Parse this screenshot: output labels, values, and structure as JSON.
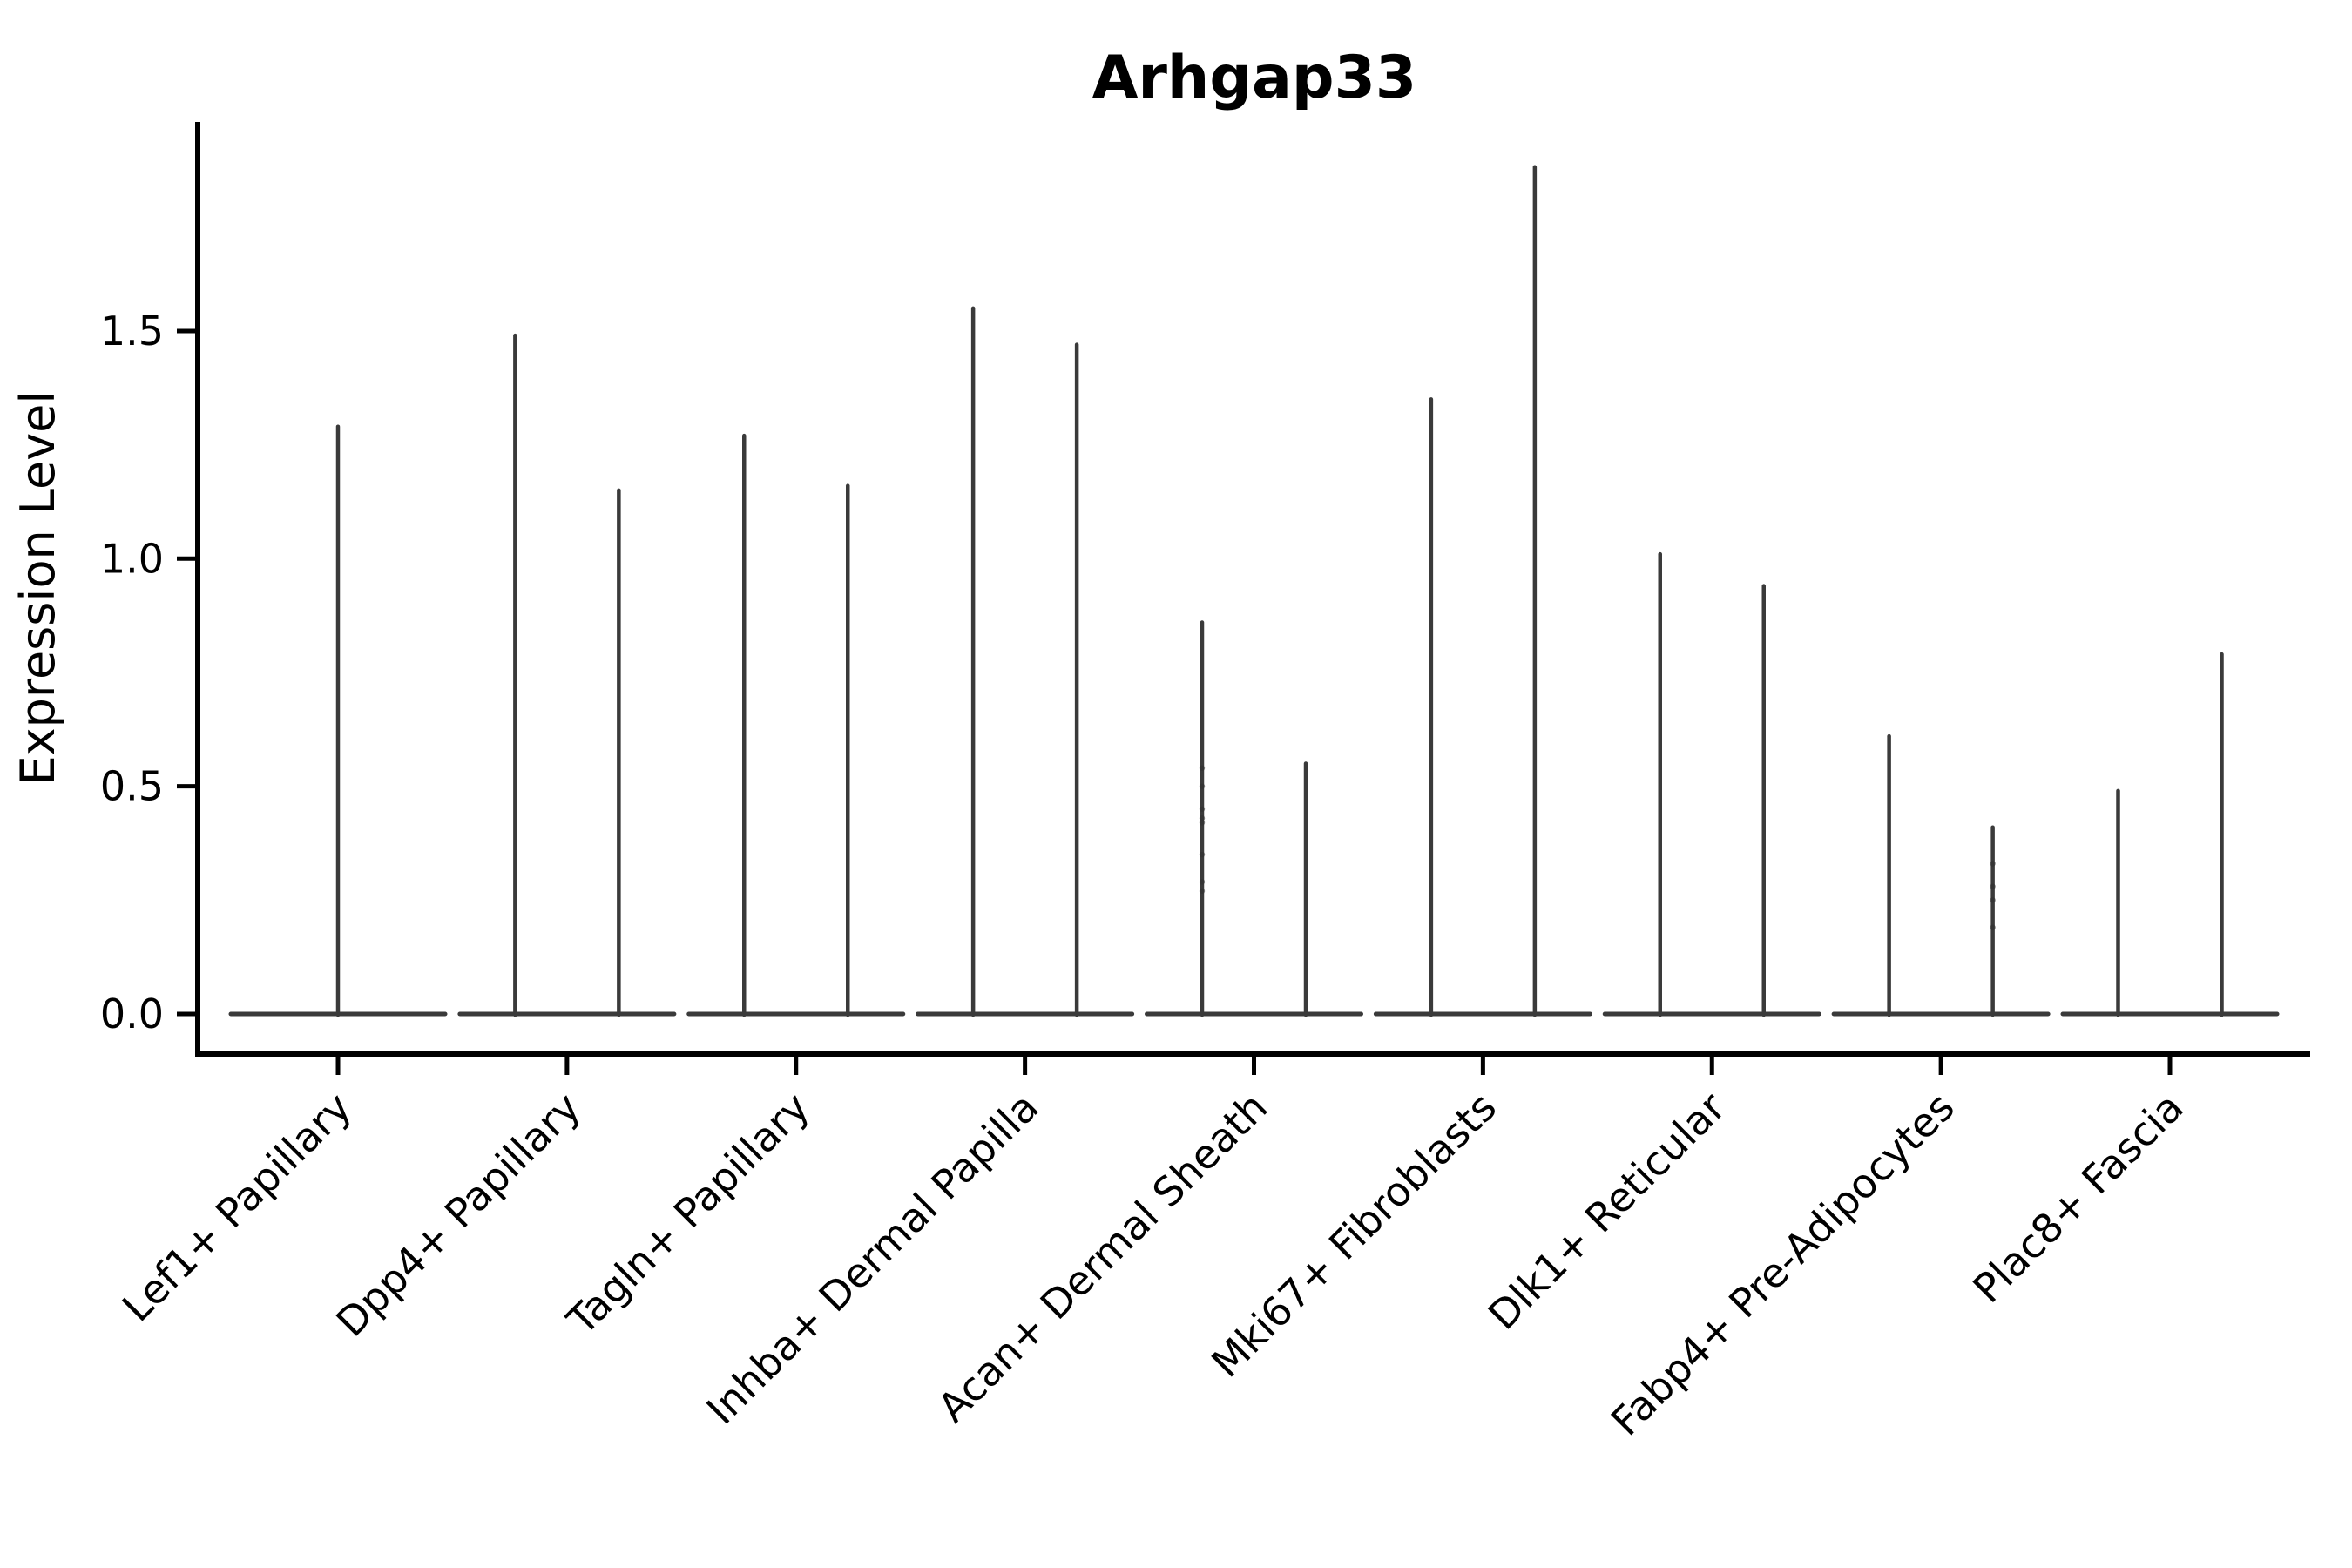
{
  "title": "Arhgap33",
  "ylabel": "Expression Level",
  "chart_data": {
    "type": "violin",
    "title": "Arhgap33",
    "xlabel": "",
    "ylabel": "Expression Level",
    "yticks": [
      0.0,
      0.5,
      1.0,
      1.5
    ],
    "ytick_labels": [
      "0.0",
      "0.5",
      "1.0",
      "1.5"
    ],
    "ylim": [
      -0.09,
      1.96
    ],
    "grid": false,
    "legend": "none",
    "x_label_rotation": 45,
    "background": "#ffffff",
    "violin_color": "#3a3a3a",
    "dot_color": "#2f2f2f",
    "axis_color": "#000000",
    "categories": [
      {
        "label": "Lef1+ Papillary",
        "violins": [
          {
            "peak": 1.29
          }
        ]
      },
      {
        "label": "Dpp4+ Papillary",
        "violins": [
          {
            "peak": 1.49
          },
          {
            "peak": 1.15
          }
        ]
      },
      {
        "label": "Tagln+ Papillary",
        "violins": [
          {
            "peak": 1.27
          },
          {
            "peak": 1.16
          }
        ]
      },
      {
        "label": "Inhba+ Dermal Papilla",
        "violins": [
          {
            "peak": 1.55
          },
          {
            "peak": 1.47
          }
        ]
      },
      {
        "label": "Acan+ Dermal Sheath",
        "violins": [
          {
            "peak": 0.86,
            "dots": [
              0.54,
              0.5,
              0.45,
              0.43,
              0.42,
              0.35,
              0.29,
              0.27
            ]
          },
          {
            "peak": 0.55
          }
        ]
      },
      {
        "label": "Mki67+ Fibroblasts",
        "violins": [
          {
            "peak": 1.35
          },
          {
            "peak": 1.86
          }
        ]
      },
      {
        "label": "Dlk1+ Reticular",
        "violins": [
          {
            "peak": 1.01
          },
          {
            "peak": 0.94
          }
        ]
      },
      {
        "label": "Fabp4+ Pre-Adipocytes",
        "violins": [
          {
            "peak": 0.61
          },
          {
            "peak": 0.41,
            "dots": [
              0.33,
              0.28,
              0.25,
              0.19
            ]
          }
        ]
      },
      {
        "label": "Plac8+ Fascia",
        "violins": [
          {
            "peak": 0.49
          },
          {
            "peak": 0.79
          }
        ]
      }
    ]
  }
}
